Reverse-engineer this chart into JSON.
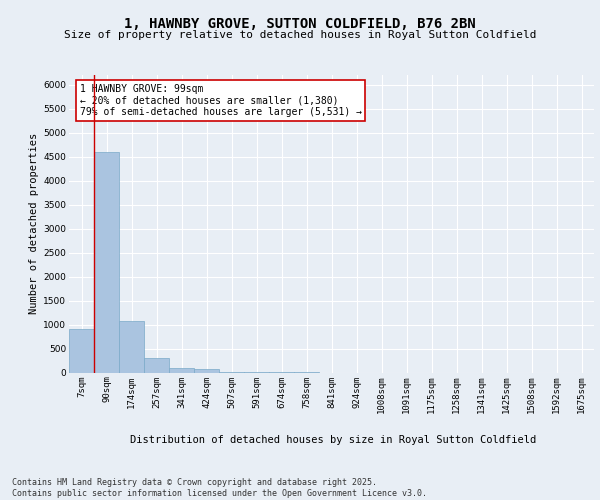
{
  "title": "1, HAWNBY GROVE, SUTTON COLDFIELD, B76 2BN",
  "subtitle": "Size of property relative to detached houses in Royal Sutton Coldfield",
  "xlabel": "Distribution of detached houses by size in Royal Sutton Coldfield",
  "ylabel": "Number of detached properties",
  "categories": [
    "7sqm",
    "90sqm",
    "174sqm",
    "257sqm",
    "341sqm",
    "424sqm",
    "507sqm",
    "591sqm",
    "674sqm",
    "758sqm",
    "841sqm",
    "924sqm",
    "1008sqm",
    "1091sqm",
    "1175sqm",
    "1258sqm",
    "1341sqm",
    "1425sqm",
    "1508sqm",
    "1592sqm",
    "1675sqm"
  ],
  "values": [
    900,
    4600,
    1080,
    300,
    90,
    70,
    5,
    2,
    1,
    1,
    0,
    0,
    0,
    0,
    0,
    0,
    0,
    0,
    0,
    0,
    0
  ],
  "bar_color": "#aac4e0",
  "bar_edge_color": "#7aaac8",
  "vline_x": 1,
  "vline_color": "#cc0000",
  "annotation_text": "1 HAWNBY GROVE: 99sqm\n← 20% of detached houses are smaller (1,380)\n79% of semi-detached houses are larger (5,531) →",
  "annotation_box_color": "#ffffff",
  "annotation_box_edge": "#cc0000",
  "background_color": "#e8eef5",
  "plot_bg_color": "#e8eef5",
  "grid_color": "#ffffff",
  "ylim": [
    0,
    6200
  ],
  "yticks": [
    0,
    500,
    1000,
    1500,
    2000,
    2500,
    3000,
    3500,
    4000,
    4500,
    5000,
    5500,
    6000
  ],
  "footer": "Contains HM Land Registry data © Crown copyright and database right 2025.\nContains public sector information licensed under the Open Government Licence v3.0.",
  "title_fontsize": 10,
  "subtitle_fontsize": 8,
  "xlabel_fontsize": 7.5,
  "ylabel_fontsize": 7.5,
  "tick_fontsize": 6.5,
  "annotation_fontsize": 7,
  "footer_fontsize": 6
}
